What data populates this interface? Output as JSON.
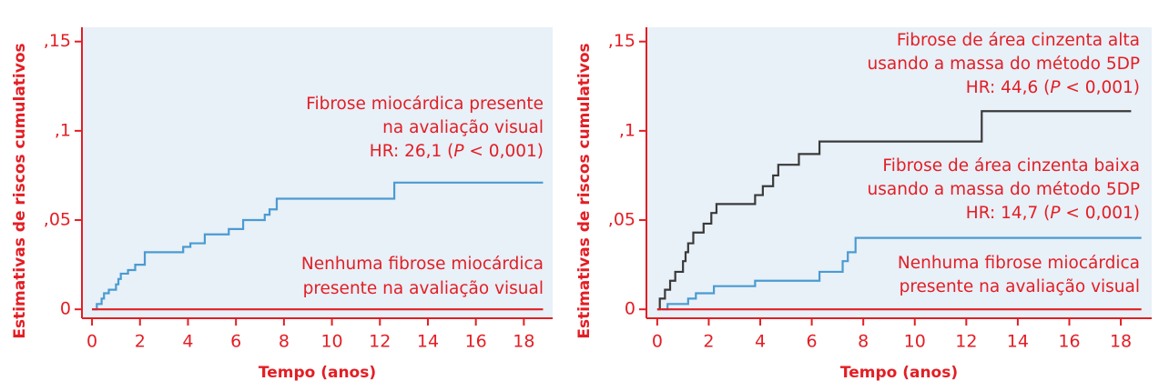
{
  "chart_data": [
    {
      "type": "line",
      "step": true,
      "xlabel": "Tempo (anos)",
      "ylabel": "Estimativas de riscos cumulativos",
      "xlim": [
        -0.42,
        19.2
      ],
      "ylim": [
        -0.005,
        0.158
      ],
      "xticks": [
        0,
        2,
        4,
        6,
        8,
        10,
        12,
        14,
        16,
        18
      ],
      "yticks": [
        0,
        {
          "value": 0.05,
          "label": ",05"
        },
        {
          "value": 0.1,
          "label": ",1"
        },
        {
          "value": 0.15,
          "label": ",15"
        }
      ],
      "axis_color": "#e31e24",
      "background": "#e8f0f8",
      "series": [
        {
          "color": "#4a9bd1",
          "x": [
            0,
            0.2,
            0.4,
            0.5,
            0.7,
            1.0,
            1.1,
            1.2,
            1.5,
            1.8,
            2.2,
            3.8,
            4.1,
            4.7,
            5.7,
            6.3,
            7.2,
            7.4,
            7.7,
            12.6,
            18.8
          ],
          "values": [
            0,
            0.003,
            0.006,
            0.009,
            0.011,
            0.014,
            0.017,
            0.02,
            0.022,
            0.025,
            0.032,
            0.035,
            0.037,
            0.042,
            0.045,
            0.05,
            0.053,
            0.056,
            0.062,
            0.071,
            0.071
          ]
        },
        {
          "color": "#e31e24",
          "x": [
            0,
            18.8
          ],
          "values": [
            0,
            0
          ]
        }
      ],
      "annotations": [
        {
          "color": "#e31e24",
          "lines": [
            [
              {
                "text": "Fibrose miocárdica presente"
              }
            ],
            [
              {
                "text": "na avaliação visual"
              }
            ],
            [
              {
                "text": "HR: 26,1 ("
              },
              {
                "text": "P",
                "italic": true
              },
              {
                "text": " < 0,001)"
              }
            ]
          ]
        },
        {
          "color": "#e31e24",
          "lines": [
            [
              {
                "text": "Nenhuma fibrose miocárdica"
              }
            ],
            [
              {
                "text": "presente na avaliação visual"
              }
            ]
          ]
        }
      ]
    },
    {
      "type": "line",
      "step": true,
      "xlabel": "Tempo (anos)",
      "ylabel": "Estimativas de riscos cumulativos",
      "xlim": [
        -0.42,
        19.2
      ],
      "ylim": [
        -0.005,
        0.158
      ],
      "xticks": [
        0,
        2,
        4,
        6,
        8,
        10,
        12,
        14,
        16,
        18
      ],
      "yticks": [
        0,
        {
          "value": 0.05,
          "label": ",05"
        },
        {
          "value": 0.1,
          "label": ",1"
        },
        {
          "value": 0.15,
          "label": ",15"
        }
      ],
      "axis_color": "#e31e24",
      "background": "#e8f0f8",
      "series": [
        {
          "color": "#3a3a3a",
          "x": [
            0,
            0.1,
            0.3,
            0.5,
            0.7,
            1.0,
            1.1,
            1.2,
            1.4,
            1.8,
            2.1,
            2.3,
            3.8,
            4.1,
            4.5,
            4.7,
            5.5,
            6.3,
            12.6,
            18.4
          ],
          "values": [
            0,
            0.006,
            0.011,
            0.016,
            0.021,
            0.027,
            0.032,
            0.037,
            0.043,
            0.048,
            0.054,
            0.059,
            0.064,
            0.069,
            0.075,
            0.081,
            0.087,
            0.094,
            0.111,
            0.111
          ]
        },
        {
          "color": "#4a9bd1",
          "x": [
            0.2,
            0.4,
            1.2,
            1.5,
            2.2,
            3.8,
            6.3,
            7.2,
            7.4,
            7.7,
            18.8
          ],
          "values": [
            0,
            0.003,
            0.006,
            0.009,
            0.013,
            0.016,
            0.021,
            0.027,
            0.032,
            0.04,
            0.04
          ]
        },
        {
          "color": "#e31e24",
          "x": [
            0,
            18.8
          ],
          "values": [
            0,
            0
          ]
        }
      ],
      "annotations": [
        {
          "color": "#e31e24",
          "lines": [
            [
              {
                "text": "Fibrose de área cinzenta alta"
              }
            ],
            [
              {
                "text": "usando a massa do método 5DP"
              }
            ],
            [
              {
                "text": "HR: 44,6 ("
              },
              {
                "text": "P",
                "italic": true
              },
              {
                "text": " < 0,001)"
              }
            ]
          ]
        },
        {
          "color": "#e31e24",
          "lines": [
            [
              {
                "text": "Fibrose de área cinzenta baixa"
              }
            ],
            [
              {
                "text": "usando a massa do método 5DP"
              }
            ],
            [
              {
                "text": "HR: 14,7 ("
              },
              {
                "text": "P",
                "italic": true
              },
              {
                "text": " < 0,001)"
              }
            ]
          ]
        },
        {
          "color": "#e31e24",
          "lines": [
            [
              {
                "text": "Nenhuma fibrose miocárdica"
              }
            ],
            [
              {
                "text": "presente na avaliação visual"
              }
            ]
          ]
        }
      ]
    }
  ]
}
